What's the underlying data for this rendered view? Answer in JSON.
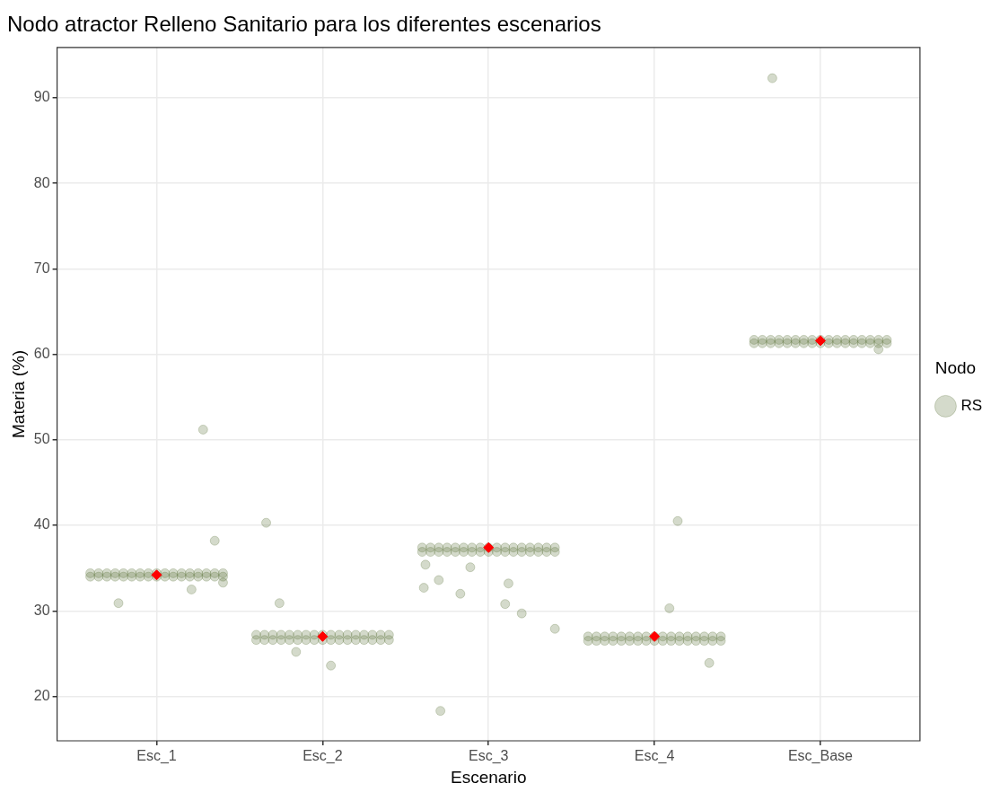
{
  "chart_data": {
    "type": "scatter",
    "title": "Nodo atractor Relleno Sanitario para los diferentes escenarios",
    "xlabel": "Escenario",
    "ylabel": "Materia (%)",
    "legend_title": "Nodo",
    "legend": "right",
    "grid": true,
    "marker": "circle",
    "xlim": [
      0.4,
      5.6
    ],
    "xticks": [
      {
        "value": 1,
        "label": "Esc_1"
      },
      {
        "value": 2,
        "label": "Esc_2"
      },
      {
        "value": 3,
        "label": "Esc_3"
      },
      {
        "value": 4,
        "label": "Esc_4"
      },
      {
        "value": 5,
        "label": "Esc_Base"
      }
    ],
    "ylim": [
      14.8,
      95.9
    ],
    "yticks": [
      20,
      30,
      40,
      50,
      60,
      70,
      80,
      90
    ],
    "series": [
      {
        "name": "RS",
        "color": "#556b2f",
        "x": [
          0.6,
          0.65,
          0.7,
          0.75,
          0.8,
          0.85,
          0.9,
          0.95,
          1,
          1.05,
          1.1,
          1.15,
          1.2,
          1.25,
          1.3,
          1.35,
          1.4,
          0.6,
          0.65,
          0.7,
          0.75,
          0.8,
          0.85,
          0.9,
          0.95,
          1,
          1.05,
          1.1,
          1.15,
          1.2,
          1.25,
          1.3,
          1.35,
          1.4,
          1.6,
          1.65,
          1.7,
          1.75,
          1.8,
          1.85,
          1.9,
          1.95,
          2,
          2.05,
          2.1,
          2.15,
          2.2,
          2.25,
          2.3,
          2.35,
          2.4,
          1.6,
          1.65,
          1.7,
          1.75,
          1.8,
          1.85,
          1.9,
          1.95,
          2,
          2.05,
          2.1,
          2.15,
          2.2,
          2.25,
          2.3,
          2.35,
          2.4,
          2.6,
          2.65,
          2.7,
          2.75,
          2.8,
          2.85,
          2.9,
          2.95,
          3,
          3.05,
          3.1,
          3.15,
          3.2,
          3.25,
          3.3,
          3.35,
          3.4,
          2.6,
          2.65,
          2.7,
          2.75,
          2.8,
          2.85,
          2.9,
          2.95,
          3,
          3.05,
          3.1,
          3.15,
          3.2,
          3.25,
          3.3,
          3.35,
          3.4,
          3.6,
          3.65,
          3.7,
          3.75,
          3.8,
          3.85,
          3.9,
          3.95,
          4,
          4.05,
          4.1,
          4.15,
          4.2,
          4.25,
          4.3,
          4.35,
          4.4,
          3.6,
          3.65,
          3.7,
          3.75,
          3.8,
          3.85,
          3.9,
          3.95,
          4,
          4.05,
          4.1,
          4.15,
          4.2,
          4.25,
          4.3,
          4.35,
          4.4,
          4.6,
          4.65,
          4.7,
          4.75,
          4.8,
          4.85,
          4.9,
          4.95,
          5,
          5.05,
          5.1,
          5.15,
          5.2,
          5.25,
          5.3,
          5.35,
          5.4,
          4.6,
          4.65,
          4.7,
          4.75,
          4.8,
          4.85,
          4.9,
          4.95,
          5,
          5.05,
          5.1,
          5.15,
          5.2,
          5.25,
          5.3,
          5.35,
          5.4,
          1.35,
          1.66,
          0.77,
          1.21,
          1.74,
          1.84,
          2.05,
          2.71,
          2.61,
          2.7,
          2.83,
          2.89,
          2.62,
          1.28,
          1.4,
          3.12,
          3.1,
          3.2,
          3.4,
          4.14,
          4.09,
          4.33,
          4.71,
          5.35
        ],
        "values": [
          34.4,
          34.4,
          34.4,
          34.4,
          34.4,
          34.4,
          34.4,
          34.4,
          34.4,
          34.4,
          34.4,
          34.4,
          34.4,
          34.4,
          34.4,
          34.4,
          34.4,
          34,
          34,
          34,
          34,
          34,
          34,
          34,
          34,
          34,
          34,
          34,
          34,
          34,
          34,
          34,
          34,
          34,
          27.2,
          27.2,
          27.2,
          27.2,
          27.2,
          27.2,
          27.2,
          27.2,
          27.2,
          27.2,
          27.2,
          27.2,
          27.2,
          27.2,
          27.2,
          27.2,
          27.2,
          26.6,
          26.6,
          26.6,
          26.6,
          26.6,
          26.6,
          26.6,
          26.6,
          26.6,
          26.6,
          26.6,
          26.6,
          26.6,
          26.6,
          26.6,
          26.6,
          26.6,
          37.4,
          37.4,
          37.4,
          37.4,
          37.4,
          37.4,
          37.4,
          37.4,
          37.4,
          37.4,
          37.4,
          37.4,
          37.4,
          37.4,
          37.4,
          37.4,
          37.4,
          36.9,
          36.9,
          36.9,
          36.9,
          36.9,
          36.9,
          36.9,
          36.9,
          36.9,
          36.9,
          36.9,
          36.9,
          36.9,
          36.9,
          36.9,
          36.9,
          36.9,
          27,
          27,
          27,
          27,
          27,
          27,
          27,
          27,
          27,
          27,
          27,
          27,
          27,
          27,
          27,
          27,
          27,
          26.5,
          26.5,
          26.5,
          26.5,
          26.5,
          26.5,
          26.5,
          26.5,
          26.5,
          26.5,
          26.5,
          26.5,
          26.5,
          26.5,
          26.5,
          26.5,
          26.5,
          61.7,
          61.7,
          61.7,
          61.7,
          61.7,
          61.7,
          61.7,
          61.7,
          61.7,
          61.7,
          61.7,
          61.7,
          61.7,
          61.7,
          61.7,
          61.7,
          61.7,
          61.3,
          61.3,
          61.3,
          61.3,
          61.3,
          61.3,
          61.3,
          61.3,
          61.3,
          61.3,
          61.3,
          61.3,
          61.3,
          61.3,
          61.3,
          61.3,
          61.3,
          38.2,
          40.3,
          30.9,
          32.5,
          30.9,
          25.2,
          23.6,
          18.3,
          32.7,
          33.6,
          32,
          35.1,
          35.4,
          51.2,
          33.3,
          33.2,
          30.8,
          29.7,
          27.9,
          40.5,
          30.3,
          23.9,
          92.3,
          60.6
        ]
      },
      {
        "color": "#ff0000",
        "marker": "diamond",
        "x": [
          1,
          2,
          3,
          4,
          5
        ],
        "values": [
          34.2,
          27,
          37.4,
          27,
          61.6
        ]
      }
    ]
  }
}
